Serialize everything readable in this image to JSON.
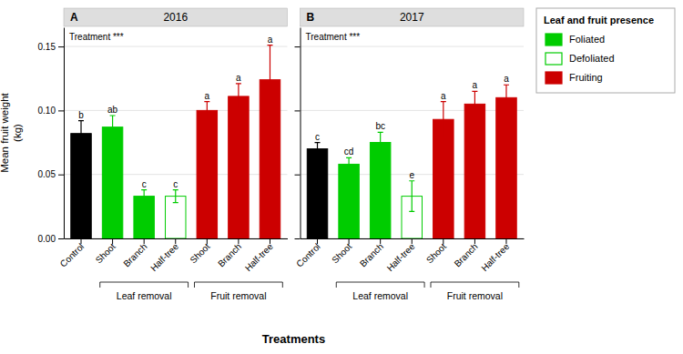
{
  "chart_data": [
    {
      "type": "bar",
      "title": "2016",
      "annotations": [
        "A",
        "Treatment ***"
      ],
      "categories": [
        "Control",
        "Shoot",
        "Branch",
        "Half-tree",
        "Shoot",
        "Branch",
        "Half-tree"
      ],
      "values": [
        0.082,
        0.087,
        0.033,
        0.033,
        0.1,
        0.111,
        0.124
      ],
      "errors": [
        0.01,
        0.009,
        0.005,
        0.005,
        0.007,
        0.01,
        0.027
      ],
      "colors": [
        "#000000",
        "#00cc00",
        "#00cc00",
        "#ffffff",
        "#cc0000",
        "#cc0000",
        "#cc0000"
      ],
      "edgecolors": [
        "#000000",
        "#00cc00",
        "#00cc00",
        "#00cc00",
        "#cc0000",
        "#cc0000",
        "#cc0000"
      ],
      "sig_labels": [
        "b",
        "ab",
        "c",
        "c",
        "a",
        "a",
        "a"
      ],
      "ylabel": "Mean fruit weight\n(kg)",
      "xlabel": "Treatments",
      "ylim": [
        0.0,
        0.165
      ],
      "yticks": [
        {
          "value": 0.0,
          "label": "0.00"
        },
        {
          "value": 0.05,
          "label": "0.05"
        },
        {
          "value": 0.1,
          "label": "0.10"
        },
        {
          "value": 0.15,
          "label": "0.15"
        }
      ],
      "grid": true,
      "groups": [
        {
          "label": "Leaf removal",
          "from": 1,
          "to": 3
        },
        {
          "label": "Fruit removal",
          "from": 4,
          "to": 6
        }
      ]
    },
    {
      "type": "bar",
      "title": "2017",
      "annotations": [
        "B",
        "Treatment ***"
      ],
      "categories": [
        "Control",
        "Shoot",
        "Branch",
        "Half-tree",
        "Shoot",
        "Branch",
        "Half-tree"
      ],
      "values": [
        0.07,
        0.058,
        0.075,
        0.033,
        0.093,
        0.105,
        0.11
      ],
      "errors": [
        0.005,
        0.005,
        0.008,
        0.012,
        0.014,
        0.01,
        0.01
      ],
      "colors": [
        "#000000",
        "#00cc00",
        "#00cc00",
        "#ffffff",
        "#cc0000",
        "#cc0000",
        "#cc0000"
      ],
      "edgecolors": [
        "#000000",
        "#00cc00",
        "#00cc00",
        "#00cc00",
        "#cc0000",
        "#cc0000",
        "#cc0000"
      ],
      "sig_labels": [
        "c",
        "cd",
        "bc",
        "e",
        "a",
        "a",
        "a"
      ],
      "ylim": [
        0.0,
        0.165
      ],
      "yticks": [
        0.0,
        0.05,
        0.1,
        0.15
      ],
      "tick_labels": "x",
      "grid": true,
      "groups": [
        {
          "label": "Leaf removal",
          "from": 1,
          "to": 3
        },
        {
          "label": "Fruit removal",
          "from": 4,
          "to": 6
        }
      ],
      "legend": "right",
      "legend_title": "Leaf and fruit presence",
      "legend_items": [
        {
          "name": "Foliated",
          "color": "#00cc00",
          "edgecolor": "#00cc00"
        },
        {
          "name": "Defoliated",
          "color": "#ffffff",
          "edgecolor": "#00cc00"
        },
        {
          "name": "Fruiting",
          "color": "#cc0000",
          "edgecolor": "#cc0000"
        }
      ]
    }
  ]
}
